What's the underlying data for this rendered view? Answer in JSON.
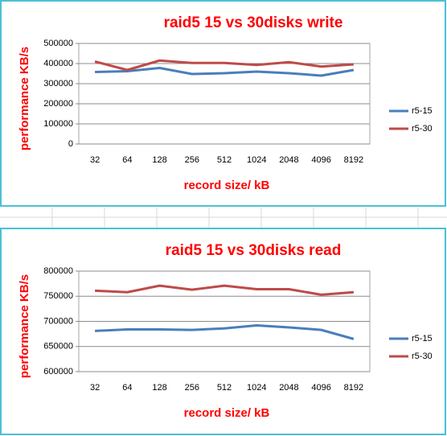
{
  "chart_data": [
    {
      "type": "line",
      "title": "raid5 15 vs 30disks write",
      "x_label": "record size/ kB",
      "y_label": "performance KB/s",
      "categories": [
        "32",
        "64",
        "128",
        "256",
        "512",
        "1024",
        "2048",
        "4096",
        "8192"
      ],
      "series": [
        {
          "name": "r5-15",
          "color": "#4a7ebb",
          "values": [
            358000,
            362000,
            378000,
            348000,
            352000,
            360000,
            352000,
            340000,
            368000
          ]
        },
        {
          "name": "r5-30",
          "color": "#be4b48",
          "values": [
            410000,
            368000,
            415000,
            403000,
            403000,
            393000,
            407000,
            385000,
            396000
          ]
        }
      ],
      "ylim": [
        0,
        500000
      ],
      "yticks": [
        0,
        100000,
        200000,
        300000,
        400000,
        500000
      ],
      "grid": true,
      "legend": "right"
    },
    {
      "type": "line",
      "title": "raid5 15 vs 30disks read",
      "x_label": "record size/ kB",
      "y_label": "performance KB/s",
      "categories": [
        "32",
        "64",
        "128",
        "256",
        "512",
        "1024",
        "2048",
        "4096",
        "8192"
      ],
      "series": [
        {
          "name": "r5-15",
          "color": "#4a7ebb",
          "values": [
            681000,
            684000,
            684000,
            683000,
            686000,
            692000,
            688000,
            683000,
            665000
          ]
        },
        {
          "name": "r5-30",
          "color": "#be4b48",
          "values": [
            761000,
            758000,
            771000,
            763000,
            771000,
            764000,
            764000,
            753000,
            758000
          ]
        }
      ],
      "ylim": [
        600000,
        800000
      ],
      "yticks": [
        600000,
        650000,
        700000,
        750000,
        800000
      ],
      "grid": true,
      "legend": "right"
    }
  ]
}
